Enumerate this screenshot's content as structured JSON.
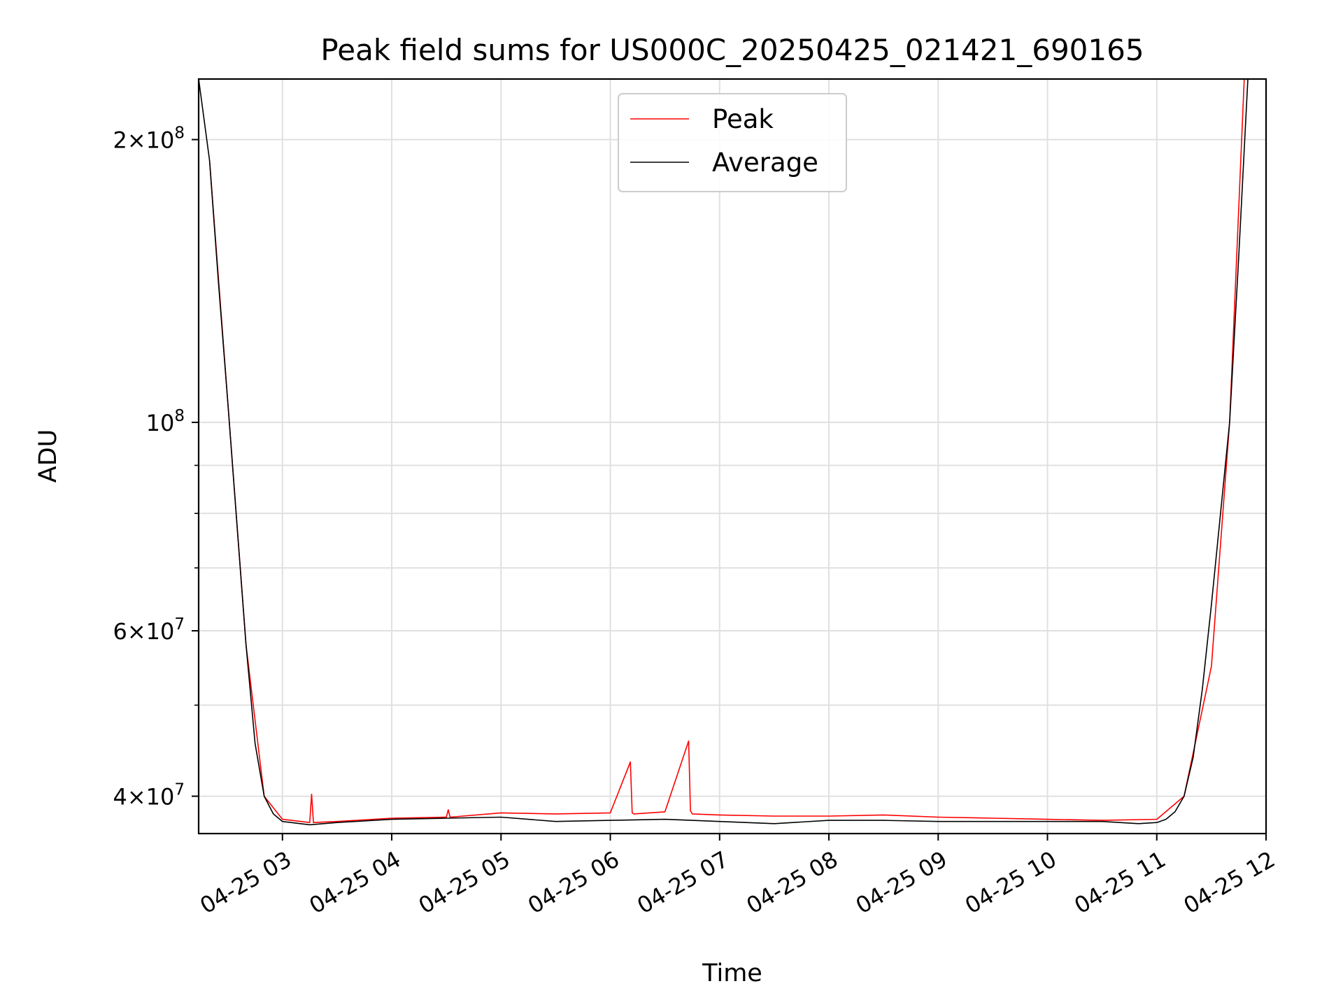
{
  "chart_data": {
    "type": "line",
    "title": "Peak field sums for US000C_20250425_021421_690165",
    "xlabel": "Time",
    "ylabel": "ADU",
    "xscale": "time",
    "yscale": "log",
    "xlim": [
      "2025-04-25 02:14",
      "2025-04-25 12:00"
    ],
    "ylim": [
      36500000,
      232000000
    ],
    "grid": true,
    "legend_position": "top-center",
    "x_ticks": [
      "04-25 03",
      "04-25 04",
      "04-25 05",
      "04-25 06",
      "04-25 07",
      "04-25 08",
      "04-25 09",
      "04-25 10",
      "04-25 11",
      "04-25 12"
    ],
    "y_ticks": [
      {
        "value": 40000000,
        "base": "4×10",
        "exp": "7"
      },
      {
        "value": 60000000,
        "base": "6×10",
        "exp": "7"
      },
      {
        "value": 100000000,
        "base": "10",
        "exp": "8"
      },
      {
        "value": 200000000,
        "base": "2×10",
        "exp": "8"
      }
    ],
    "y_minor_ticks": [
      50000000,
      70000000,
      80000000,
      90000000
    ],
    "series": [
      {
        "name": "Peak",
        "color": "#ff0000",
        "x": [
          "2025-04-25 02:20",
          "2025-04-25 02:30",
          "2025-04-25 02:40",
          "2025-04-25 02:50",
          "2025-04-25 03:00",
          "2025-04-25 03:15",
          "2025-04-25 03:16",
          "2025-04-25 03:17",
          "2025-04-25 03:30",
          "2025-04-25 04:00",
          "2025-04-25 04:30",
          "2025-04-25 04:31",
          "2025-04-25 04:32",
          "2025-04-25 05:00",
          "2025-04-25 05:30",
          "2025-04-25 06:00",
          "2025-04-25 06:11",
          "2025-04-25 06:12",
          "2025-04-25 06:13",
          "2025-04-25 06:30",
          "2025-04-25 06:43",
          "2025-04-25 06:44",
          "2025-04-25 06:45",
          "2025-04-25 07:00",
          "2025-04-25 07:30",
          "2025-04-25 08:00",
          "2025-04-25 08:30",
          "2025-04-25 09:00",
          "2025-04-25 09:30",
          "2025-04-25 10:00",
          "2025-04-25 10:30",
          "2025-04-25 11:00",
          "2025-04-25 11:15",
          "2025-04-25 11:30",
          "2025-04-25 11:40",
          "2025-04-25 11:48"
        ],
        "y": [
          190000000,
          105000000,
          58000000,
          40000000,
          37800000,
          37500000,
          40200000,
          37500000,
          37600000,
          37900000,
          38000000,
          38700000,
          38000000,
          38400000,
          38300000,
          38400000,
          43500000,
          38400000,
          38300000,
          38500000,
          45800000,
          38600000,
          38300000,
          38200000,
          38100000,
          38100000,
          38200000,
          38000000,
          37900000,
          37800000,
          37700000,
          37800000,
          40000000,
          55000000,
          100000000,
          232000000
        ]
      },
      {
        "name": "Average",
        "color": "#000000",
        "x": [
          "2025-04-25 02:14",
          "2025-04-25 02:20",
          "2025-04-25 02:25",
          "2025-04-25 02:30",
          "2025-04-25 02:35",
          "2025-04-25 02:40",
          "2025-04-25 02:45",
          "2025-04-25 02:50",
          "2025-04-25 02:55",
          "2025-04-25 03:00",
          "2025-04-25 03:15",
          "2025-04-25 03:30",
          "2025-04-25 04:00",
          "2025-04-25 04:30",
          "2025-04-25 05:00",
          "2025-04-25 05:30",
          "2025-04-25 06:00",
          "2025-04-25 06:30",
          "2025-04-25 07:00",
          "2025-04-25 07:30",
          "2025-04-25 08:00",
          "2025-04-25 08:30",
          "2025-04-25 09:00",
          "2025-04-25 09:30",
          "2025-04-25 10:00",
          "2025-04-25 10:30",
          "2025-04-25 10:50",
          "2025-04-25 11:00",
          "2025-04-25 11:05",
          "2025-04-25 11:10",
          "2025-04-25 11:15",
          "2025-04-25 11:20",
          "2025-04-25 11:25",
          "2025-04-25 11:30",
          "2025-04-25 11:35",
          "2025-04-25 11:40",
          "2025-04-25 11:45",
          "2025-04-25 11:50"
        ],
        "y": [
          232000000,
          190000000,
          140000000,
          105000000,
          78000000,
          58000000,
          45500000,
          40000000,
          38300000,
          37600000,
          37300000,
          37500000,
          37800000,
          37900000,
          38000000,
          37600000,
          37700000,
          37800000,
          37600000,
          37400000,
          37700000,
          37700000,
          37600000,
          37600000,
          37600000,
          37600000,
          37400000,
          37500000,
          37800000,
          38500000,
          40000000,
          44000000,
          52000000,
          64000000,
          80000000,
          100000000,
          150000000,
          232000000
        ]
      }
    ]
  }
}
